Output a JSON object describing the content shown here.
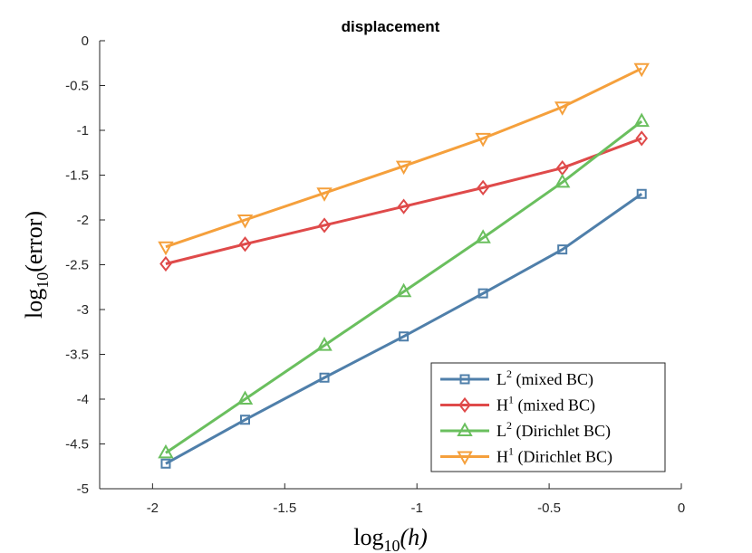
{
  "chart_data": {
    "type": "line",
    "title": "displacement",
    "xlabel": {
      "base": "log",
      "sub": "10",
      "arg": "(h)"
    },
    "ylabel": {
      "base": "log",
      "sub": "10",
      "arg": "(error)"
    },
    "xlim": [
      -2.2,
      0
    ],
    "ylim": [
      -5,
      0
    ],
    "xticks": [
      -2,
      -1.5,
      -1,
      -0.5,
      0
    ],
    "xtick_labels": [
      "-2",
      "-1.5",
      "-1",
      "-0.5",
      "0"
    ],
    "yticks": [
      0,
      -0.5,
      -1,
      -1.5,
      -2,
      -2.5,
      -3,
      -3.5,
      -4,
      -4.5,
      -5
    ],
    "ytick_labels": [
      "0",
      "-0.5",
      "-1",
      "-1.5",
      "-2",
      "-2.5",
      "-3",
      "-3.5",
      "-4",
      "-4.5",
      "-5"
    ],
    "grid": false,
    "legend_position": "bottom-right",
    "x": [
      -1.95,
      -1.65,
      -1.35,
      -1.05,
      -0.75,
      -0.45,
      -0.15
    ],
    "series": [
      {
        "name": "L2 (mixed BC)",
        "norm": "L",
        "sup": "2",
        "bc": "(mixed BC)",
        "color": "#4f7faa",
        "marker": "square",
        "values": [
          -4.72,
          -4.23,
          -3.76,
          -3.3,
          -2.82,
          -2.33,
          -1.71
        ]
      },
      {
        "name": "H1 (mixed BC)",
        "norm": "H",
        "sup": "1",
        "bc": "(mixed BC)",
        "color": "#df4a4a",
        "marker": "diamond",
        "values": [
          -2.49,
          -2.27,
          -2.06,
          -1.85,
          -1.64,
          -1.42,
          -1.09
        ]
      },
      {
        "name": "L2 (Dirichlet BC)",
        "norm": "L",
        "sup": "2",
        "bc": "(Dirichlet BC)",
        "color": "#6abf5e",
        "marker": "triangle-up",
        "values": [
          -4.6,
          -4.0,
          -3.4,
          -2.8,
          -2.2,
          -1.58,
          -0.9
        ]
      },
      {
        "name": "H1 (Dirichlet BC)",
        "norm": "H",
        "sup": "1",
        "bc": "(Dirichlet BC)",
        "color": "#f5a03c",
        "marker": "triangle-down",
        "values": [
          -2.3,
          -2.0,
          -1.7,
          -1.4,
          -1.09,
          -0.74,
          -0.31
        ]
      }
    ]
  }
}
